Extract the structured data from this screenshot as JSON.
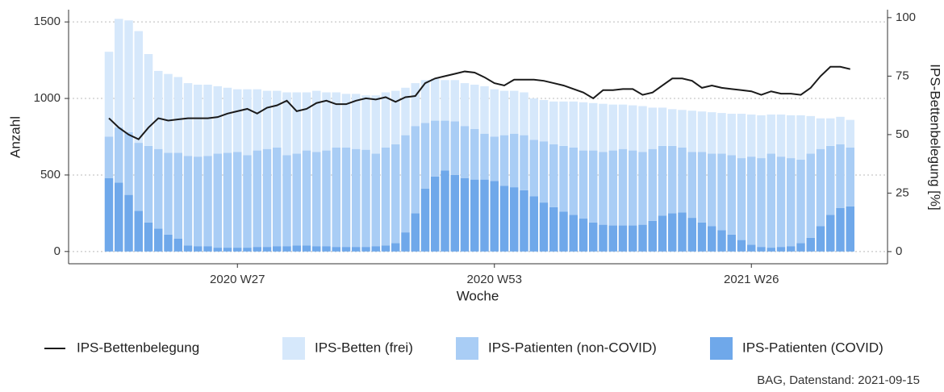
{
  "chart_data": {
    "type": "bar",
    "x_label": "Woche",
    "y_label": "Anzahl",
    "y2_label": "IPS-Bettenbelegung [%]",
    "caption": "BAG, Datenstand: 2021-09-15",
    "categories": [
      null,
      null,
      null,
      null,
      null,
      null,
      null,
      null,
      null,
      null,
      null,
      null,
      null,
      "2020 W27",
      null,
      null,
      null,
      null,
      null,
      null,
      null,
      null,
      null,
      null,
      null,
      null,
      null,
      null,
      null,
      null,
      null,
      null,
      null,
      null,
      null,
      null,
      null,
      null,
      null,
      "2020 W53",
      null,
      null,
      null,
      null,
      null,
      null,
      null,
      null,
      null,
      null,
      null,
      null,
      null,
      null,
      null,
      null,
      null,
      null,
      null,
      null,
      null,
      null,
      null,
      null,
      null,
      "2021 W26",
      null,
      null,
      null,
      null,
      null,
      null,
      null,
      null,
      null,
      null
    ],
    "series": [
      {
        "name": "IPS-Bettenbelegung",
        "type": "line",
        "axis": "y2",
        "color": "#1a1a1a",
        "values": [
          57,
          53,
          50,
          48,
          53,
          57,
          56,
          56.5,
          57,
          57,
          57,
          57.5,
          59,
          60,
          61,
          59,
          61.5,
          62.5,
          64.5,
          60,
          61,
          63.5,
          64.5,
          63,
          63,
          64.5,
          65.5,
          65,
          66,
          64,
          66,
          66.5,
          72,
          74,
          75,
          76,
          77,
          76.5,
          74.5,
          72,
          71,
          73.5,
          73.5,
          73.5,
          73,
          72,
          71,
          69.5,
          68,
          65.5,
          69,
          69,
          69.5,
          69.5,
          67,
          68,
          71,
          74,
          74,
          73,
          70,
          71,
          70,
          69.5,
          69,
          68.5,
          67,
          68.5,
          67.5,
          67.5,
          67,
          70,
          75,
          79,
          79,
          78
        ]
      },
      {
        "name": "IPS-Betten (frei)",
        "type": "bar",
        "color": "#d6e8fb",
        "values": [
          555,
          710,
          730,
          730,
          600,
          510,
          515,
          495,
          475,
          470,
          465,
          440,
          425,
          410,
          430,
          400,
          380,
          370,
          410,
          400,
          380,
          400,
          380,
          360,
          350,
          360,
          355,
          380,
          360,
          350,
          310,
          280,
          280,
          275,
          265,
          270,
          280,
          290,
          310,
          310,
          290,
          280,
          280,
          270,
          270,
          280,
          290,
          300,
          315,
          310,
          315,
          300,
          290,
          295,
          300,
          270,
          250,
          240,
          245,
          270,
          265,
          270,
          265,
          270,
          290,
          275,
          280,
          255,
          275,
          280,
          290,
          245,
          200,
          180,
          180,
          180
        ]
      },
      {
        "name": "IPS-Patienten (non-COVID)",
        "type": "bar",
        "color": "#a9cdf5",
        "values": [
          270,
          360,
          410,
          445,
          500,
          520,
          535,
          560,
          585,
          585,
          590,
          615,
          620,
          625,
          605,
          630,
          640,
          645,
          595,
          600,
          620,
          615,
          625,
          650,
          650,
          640,
          635,
          605,
          640,
          645,
          635,
          570,
          430,
          365,
          325,
          350,
          340,
          330,
          300,
          290,
          330,
          350,
          360,
          370,
          400,
          410,
          430,
          440,
          445,
          470,
          475,
          490,
          500,
          490,
          475,
          470,
          455,
          440,
          425,
          430,
          460,
          475,
          500,
          520,
          535,
          575,
          580,
          615,
          590,
          575,
          545,
          550,
          505,
          450,
          415,
          385
        ]
      },
      {
        "name": "IPS-Patienten (COVID)",
        "type": "bar",
        "color": "#6fa8ea",
        "values": [
          480,
          450,
          370,
          265,
          190,
          150,
          110,
          85,
          40,
          35,
          35,
          25,
          25,
          25,
          25,
          30,
          30,
          35,
          35,
          40,
          40,
          35,
          35,
          30,
          30,
          30,
          30,
          35,
          40,
          55,
          125,
          250,
          410,
          490,
          530,
          500,
          480,
          470,
          470,
          460,
          430,
          420,
          400,
          360,
          320,
          290,
          260,
          240,
          215,
          190,
          175,
          170,
          170,
          170,
          175,
          200,
          235,
          250,
          255,
          220,
          190,
          165,
          140,
          110,
          75,
          45,
          30,
          25,
          30,
          35,
          55,
          90,
          165,
          240,
          285,
          295
        ]
      }
    ],
    "ylim": [
      -80,
      1580
    ],
    "yticks": [
      0,
      500,
      1000,
      1500
    ],
    "y2lim": [
      -5.2,
      103.4
    ],
    "y2ticks": [
      0,
      25,
      50,
      75,
      100
    ],
    "grid": true,
    "legend": "bottom"
  }
}
